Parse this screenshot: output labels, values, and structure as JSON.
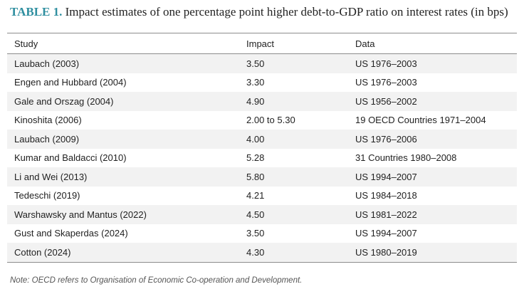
{
  "title": {
    "label": "TABLE 1.",
    "text": " Impact estimates of one percentage point higher debt-to-GDP ratio on interest rates (in bps)"
  },
  "table": {
    "headers": [
      "Study",
      "Impact",
      "Data"
    ],
    "rows": [
      [
        "Laubach (2003)",
        "3.50",
        "US 1976–2003"
      ],
      [
        "Engen and Hubbard (2004)",
        "3.30",
        "US 1976–2003"
      ],
      [
        "Gale and Orszag (2004)",
        "4.90",
        "US 1956–2002"
      ],
      [
        "Kinoshita (2006)",
        "2.00 to 5.30",
        "19 OECD Countries 1971–2004"
      ],
      [
        "Laubach (2009)",
        "4.00",
        "US 1976–2006"
      ],
      [
        "Kumar and Baldacci (2010)",
        "5.28",
        "31 Countries 1980–2008"
      ],
      [
        "Li and Wei (2013)",
        "5.80",
        "US 1994–2007"
      ],
      [
        "Tedeschi (2019)",
        "4.21",
        "US 1984–2018"
      ],
      [
        "Warshawsky and Mantus (2022)",
        "4.50",
        "US 1981–2022"
      ],
      [
        "Gust and Skaperdas (2024)",
        "3.50",
        "US 1994–2007"
      ],
      [
        "Cotton (2024)",
        "4.30",
        "US 1980–2019"
      ]
    ]
  },
  "note": "Note: OECD refers to Organisation of Economic Co-operation and Development.",
  "colors": {
    "title_label": "#2f8fa0",
    "row_stripe": "#f2f2f2",
    "rule": "#8c8c8c"
  }
}
